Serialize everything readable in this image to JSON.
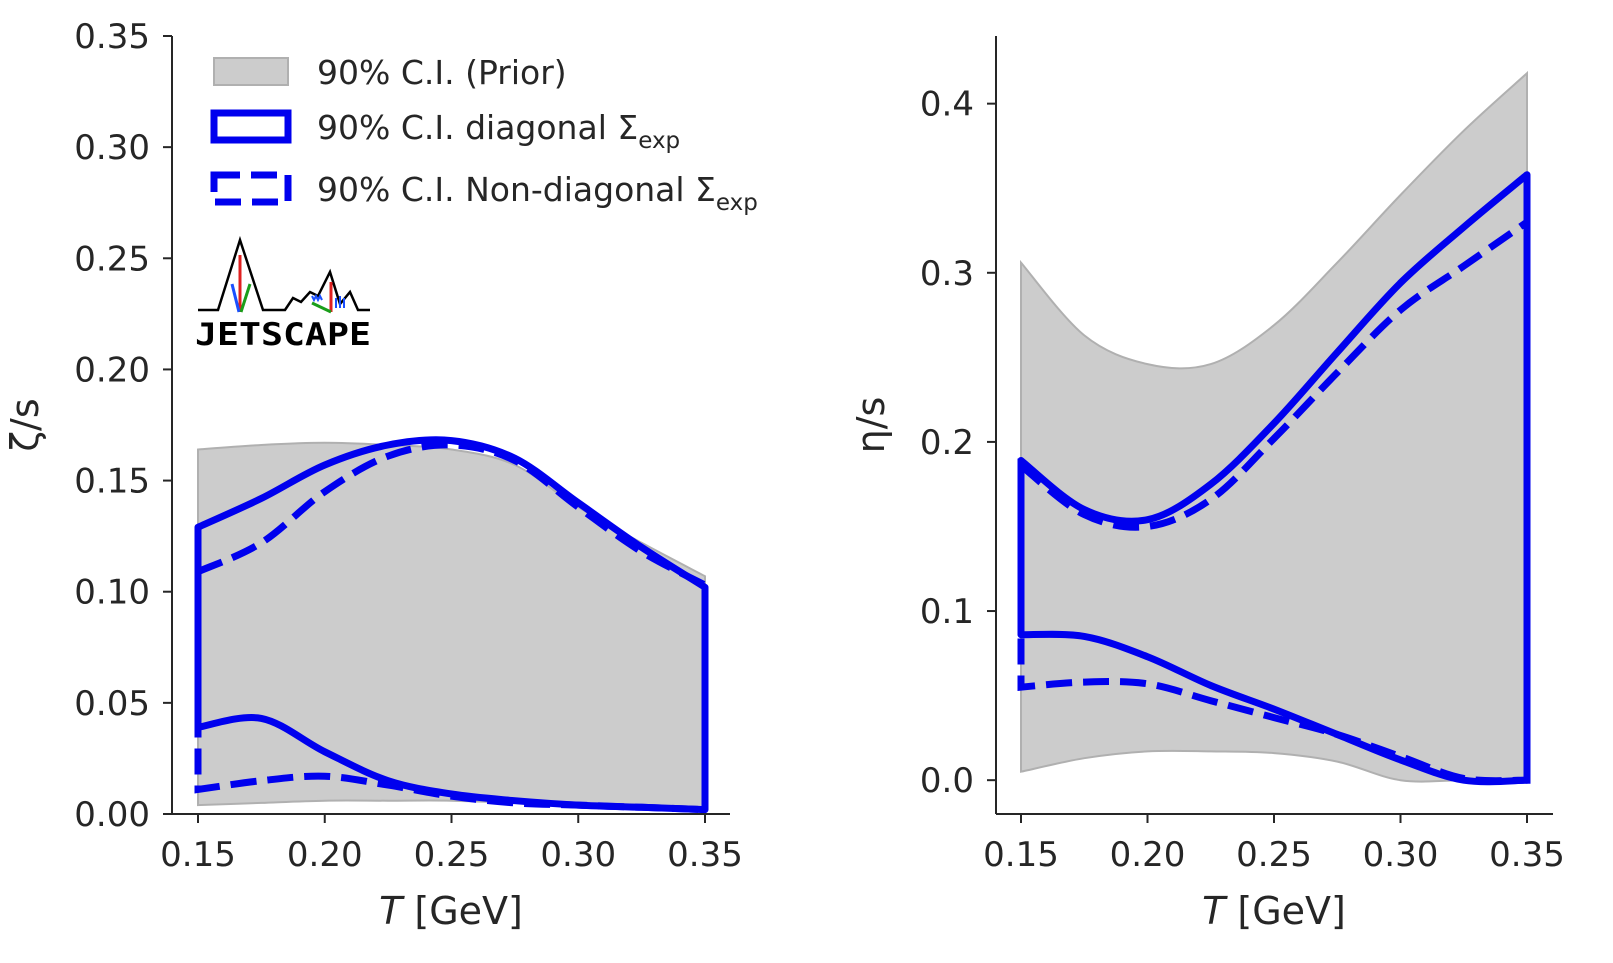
{
  "colors": {
    "prior_fill": "#cccccc",
    "prior_edge": "#b0b0b0",
    "posterior": "#0000ee",
    "axis": "#262626"
  },
  "legend": {
    "items": [
      {
        "label": "90% C.I. (Prior)",
        "style": "prior"
      },
      {
        "label": "90% C.I. diagonal Σ",
        "sub": "exp",
        "style": "solid"
      },
      {
        "label": "90% C.I. Non-diagonal Σ",
        "sub": "exp",
        "style": "dashed"
      }
    ]
  },
  "logo": {
    "text": "JETSCAPE"
  },
  "chart_data": [
    {
      "type": "area",
      "name": "bulk-viscosity",
      "xlabel_italic": "T",
      "xlabel_rest": " [GeV]",
      "ylabel": "ζ/s",
      "xlim": [
        0.14,
        0.36
      ],
      "ylim": [
        0.0,
        0.35
      ],
      "xticks": [
        0.15,
        0.2,
        0.25,
        0.3,
        0.35
      ],
      "xtick_labels": [
        "0.15",
        "0.20",
        "0.25",
        "0.30",
        "0.35"
      ],
      "yticks": [
        0.0,
        0.05,
        0.1,
        0.15,
        0.2,
        0.25,
        0.3,
        0.35
      ],
      "ytick_labels": [
        "0.00",
        "0.05",
        "0.10",
        "0.15",
        "0.20",
        "0.25",
        "0.30",
        "0.35"
      ],
      "x": [
        0.15,
        0.175,
        0.2,
        0.225,
        0.25,
        0.275,
        0.3,
        0.325,
        0.35
      ],
      "series": [
        {
          "name": "prior_upper",
          "values": [
            0.164,
            0.166,
            0.167,
            0.166,
            0.164,
            0.157,
            0.138,
            0.122,
            0.107
          ]
        },
        {
          "name": "prior_lower",
          "values": [
            0.004,
            0.005,
            0.006,
            0.006,
            0.006,
            0.005,
            0.004,
            0.003,
            0.002
          ]
        },
        {
          "name": "diagonal_upper",
          "values": [
            0.129,
            0.142,
            0.157,
            0.166,
            0.168,
            0.16,
            0.14,
            0.12,
            0.102
          ]
        },
        {
          "name": "diagonal_lower",
          "values": [
            0.039,
            0.043,
            0.028,
            0.015,
            0.009,
            0.006,
            0.004,
            0.003,
            0.002
          ]
        },
        {
          "name": "nondiagonal_upper",
          "values": [
            0.109,
            0.122,
            0.145,
            0.161,
            0.166,
            0.159,
            0.138,
            0.118,
            0.103
          ]
        },
        {
          "name": "nondiagonal_lower",
          "values": [
            0.011,
            0.015,
            0.017,
            0.013,
            0.008,
            0.005,
            0.004,
            0.003,
            0.002
          ]
        }
      ]
    },
    {
      "type": "area",
      "name": "shear-viscosity",
      "xlabel_italic": "T",
      "xlabel_rest": " [GeV]",
      "ylabel": "η/s",
      "xlim": [
        0.14,
        0.36
      ],
      "ylim": [
        -0.02,
        0.44
      ],
      "xticks": [
        0.15,
        0.2,
        0.25,
        0.3,
        0.35
      ],
      "xtick_labels": [
        "0.15",
        "0.20",
        "0.25",
        "0.30",
        "0.35"
      ],
      "yticks": [
        0.0,
        0.1,
        0.2,
        0.3,
        0.4
      ],
      "ytick_labels": [
        "0.0",
        "0.1",
        "0.2",
        "0.3",
        "0.4"
      ],
      "x": [
        0.15,
        0.175,
        0.2,
        0.225,
        0.25,
        0.275,
        0.3,
        0.325,
        0.35
      ],
      "series": [
        {
          "name": "prior_upper",
          "values": [
            0.306,
            0.263,
            0.246,
            0.246,
            0.269,
            0.306,
            0.346,
            0.384,
            0.418
          ]
        },
        {
          "name": "prior_lower",
          "values": [
            0.005,
            0.013,
            0.017,
            0.017,
            0.016,
            0.011,
            0.0,
            0.0,
            0.0
          ]
        },
        {
          "name": "diagonal_upper",
          "values": [
            0.189,
            0.16,
            0.154,
            0.175,
            0.211,
            0.253,
            0.294,
            0.327,
            0.358
          ]
        },
        {
          "name": "diagonal_lower",
          "values": [
            0.086,
            0.085,
            0.073,
            0.056,
            0.042,
            0.027,
            0.012,
            0.0,
            0.0
          ]
        },
        {
          "name": "nondiagonal_upper",
          "values": [
            0.186,
            0.157,
            0.15,
            0.166,
            0.202,
            0.241,
            0.278,
            0.304,
            0.33
          ]
        },
        {
          "name": "nondiagonal_lower",
          "values": [
            0.055,
            0.058,
            0.057,
            0.047,
            0.037,
            0.027,
            0.014,
            0.001,
            0.0
          ]
        }
      ]
    }
  ]
}
